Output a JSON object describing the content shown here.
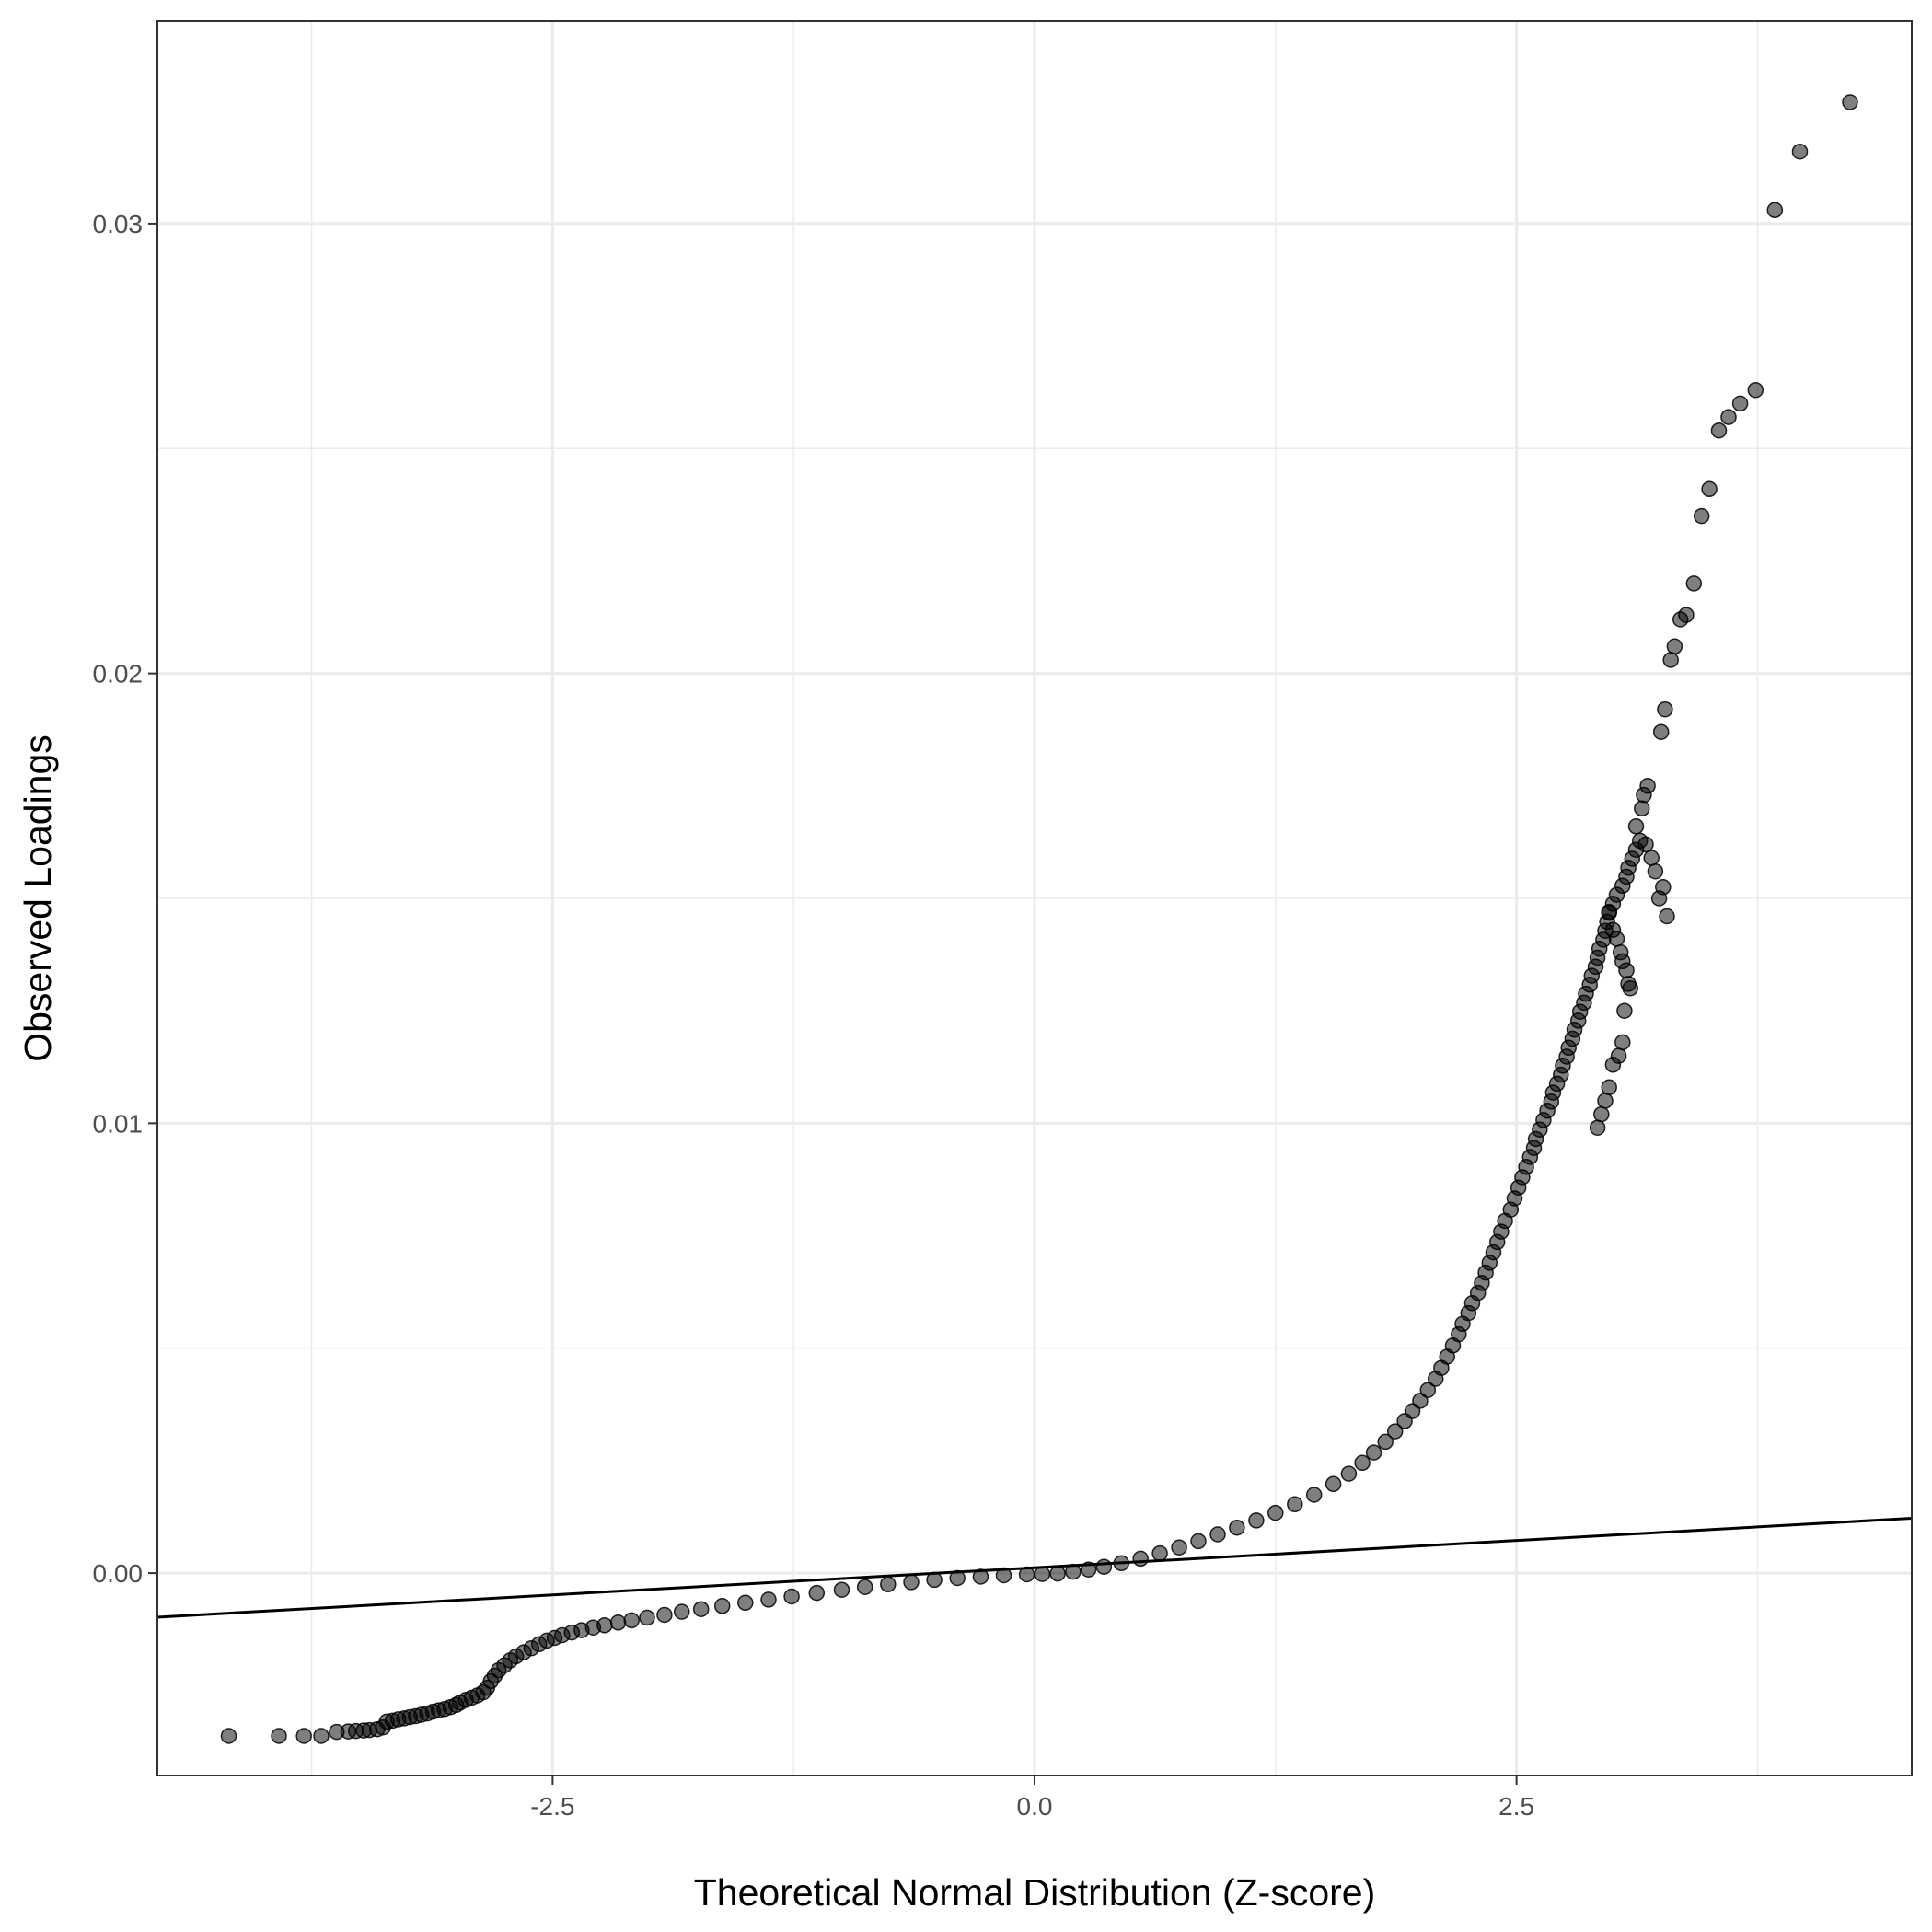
{
  "chart_data": {
    "type": "scatter",
    "title": "",
    "xlabel": "Theoretical Normal Distribution (Z-score)",
    "ylabel": "Observed Loadings",
    "xlim": [
      -4.55,
      4.55
    ],
    "ylim": [
      -0.0045,
      0.0345
    ],
    "x_ticks": [
      -2.5,
      0.0,
      2.5
    ],
    "x_tick_labels": [
      "-2.5",
      "0.0",
      "2.5"
    ],
    "y_ticks": [
      0.0,
      0.01,
      0.02,
      0.03
    ],
    "y_tick_labels": [
      "0.00",
      "0.01",
      "0.02",
      "0.03"
    ],
    "grid": true,
    "theme": "black-and-white",
    "point_color": "#000000",
    "point_alpha": 0.5,
    "reference_line": {
      "type": "qq-line",
      "x": [
        -4.55,
        4.55
      ],
      "y": [
        -0.00098,
        0.00122
      ],
      "color": "#000000"
    },
    "series": [
      {
        "points": [
          [
            -4.18,
            -0.00362
          ],
          [
            -3.92,
            -0.00362
          ],
          [
            -3.79,
            -0.00362
          ],
          [
            -3.7,
            -0.00362
          ],
          [
            -3.62,
            -0.00353
          ],
          [
            -3.56,
            -0.00352
          ],
          [
            -3.52,
            -0.00351
          ],
          [
            -3.48,
            -0.0035
          ],
          [
            -3.45,
            -0.00349
          ],
          [
            -3.41,
            -0.00347
          ],
          [
            -3.38,
            -0.00343
          ],
          [
            -3.36,
            -0.0033
          ],
          [
            -3.33,
            -0.00328
          ],
          [
            -3.3,
            -0.00325
          ],
          [
            -3.27,
            -0.00323
          ],
          [
            -3.24,
            -0.0032
          ],
          [
            -3.21,
            -0.00318
          ],
          [
            -3.18,
            -0.00315
          ],
          [
            -3.15,
            -0.00312
          ],
          [
            -3.12,
            -0.00308
          ],
          [
            -3.09,
            -0.00305
          ],
          [
            -3.06,
            -0.00302
          ],
          [
            -3.03,
            -0.00298
          ],
          [
            -3.0,
            -0.00293
          ],
          [
            -2.98,
            -0.00288
          ],
          [
            -2.95,
            -0.00282
          ],
          [
            -2.92,
            -0.00277
          ],
          [
            -2.89,
            -0.00272
          ],
          [
            -2.86,
            -0.00265
          ],
          [
            -2.84,
            -0.00255
          ],
          [
            -2.82,
            -0.0024
          ],
          [
            -2.8,
            -0.00228
          ],
          [
            -2.78,
            -0.00216
          ],
          [
            -2.75,
            -0.00205
          ],
          [
            -2.72,
            -0.00194
          ],
          [
            -2.69,
            -0.00185
          ],
          [
            -2.65,
            -0.00176
          ],
          [
            -2.61,
            -0.00167
          ],
          [
            -2.57,
            -0.00158
          ],
          [
            -2.53,
            -0.0015
          ],
          [
            -2.49,
            -0.00144
          ],
          [
            -2.45,
            -0.00138
          ],
          [
            -2.4,
            -0.00132
          ],
          [
            -2.35,
            -0.00127
          ],
          [
            -2.29,
            -0.00121
          ],
          [
            -2.23,
            -0.00116
          ],
          [
            -2.16,
            -0.0011
          ],
          [
            -2.09,
            -0.00105
          ],
          [
            -2.01,
            -0.00099
          ],
          [
            -1.92,
            -0.00093
          ],
          [
            -1.83,
            -0.00086
          ],
          [
            -1.73,
            -0.0008
          ],
          [
            -1.62,
            -0.00073
          ],
          [
            -1.5,
            -0.00066
          ],
          [
            -1.38,
            -0.00059
          ],
          [
            -1.26,
            -0.00052
          ],
          [
            -1.13,
            -0.00044
          ],
          [
            -1.0,
            -0.00037
          ],
          [
            -0.88,
            -0.00031
          ],
          [
            -0.76,
            -0.00025
          ],
          [
            -0.64,
            -0.0002
          ],
          [
            -0.52,
            -0.00015
          ],
          [
            -0.4,
            -0.00011
          ],
          [
            -0.28,
            -8e-05
          ],
          [
            -0.16,
            -5e-05
          ],
          [
            -0.04,
            -3e-05
          ],
          [
            0.04,
            -2e-05
          ],
          [
            0.12,
            -1e-05
          ],
          [
            0.2,
            3e-05
          ],
          [
            0.28,
            8e-05
          ],
          [
            0.36,
            0.00014
          ],
          [
            0.45,
            0.00022
          ],
          [
            0.55,
            0.00032
          ],
          [
            0.65,
            0.00044
          ],
          [
            0.75,
            0.00057
          ],
          [
            0.85,
            0.00071
          ],
          [
            0.95,
            0.00086
          ],
          [
            1.05,
            0.00101
          ],
          [
            1.15,
            0.00117
          ],
          [
            1.25,
            0.00134
          ],
          [
            1.35,
            0.00153
          ],
          [
            1.45,
            0.00174
          ],
          [
            1.55,
            0.00198
          ],
          [
            1.63,
            0.00221
          ],
          [
            1.7,
            0.00245
          ],
          [
            1.76,
            0.00268
          ],
          [
            1.82,
            0.00292
          ],
          [
            1.87,
            0.00315
          ],
          [
            1.92,
            0.00338
          ],
          [
            1.96,
            0.0036
          ],
          [
            2.0,
            0.00383
          ],
          [
            2.04,
            0.00407
          ],
          [
            2.08,
            0.00432
          ],
          [
            2.11,
            0.00456
          ],
          [
            2.14,
            0.00481
          ],
          [
            2.17,
            0.00506
          ],
          [
            2.2,
            0.00531
          ],
          [
            2.22,
            0.00554
          ],
          [
            2.25,
            0.00578
          ],
          [
            2.27,
            0.006
          ],
          [
            2.3,
            0.00623
          ],
          [
            2.32,
            0.00645
          ],
          [
            2.34,
            0.00668
          ],
          [
            2.36,
            0.0069
          ],
          [
            2.38,
            0.00713
          ],
          [
            2.4,
            0.00736
          ],
          [
            2.42,
            0.00759
          ],
          [
            2.44,
            0.00783
          ],
          [
            2.47,
            0.00808
          ],
          [
            2.49,
            0.00833
          ],
          [
            2.51,
            0.00857
          ],
          [
            2.53,
            0.0088
          ],
          [
            2.55,
            0.00903
          ],
          [
            2.57,
            0.00925
          ],
          [
            2.59,
            0.00945
          ],
          [
            2.6,
            0.00965
          ],
          [
            2.62,
            0.00986
          ],
          [
            2.64,
            0.01007
          ],
          [
            2.66,
            0.01028
          ],
          [
            2.68,
            0.01048
          ],
          [
            2.69,
            0.01068
          ],
          [
            2.71,
            0.01088
          ],
          [
            2.73,
            0.01108
          ],
          [
            2.74,
            0.01128
          ],
          [
            2.76,
            0.01148
          ],
          [
            2.77,
            0.01168
          ],
          [
            2.79,
            0.01188
          ],
          [
            2.8,
            0.01208
          ],
          [
            2.82,
            0.01228
          ],
          [
            2.83,
            0.01248
          ],
          [
            2.85,
            0.01268
          ],
          [
            2.86,
            0.01288
          ],
          [
            2.88,
            0.01308
          ],
          [
            2.89,
            0.01328
          ],
          [
            2.91,
            0.01348
          ],
          [
            2.92,
            0.01368
          ],
          [
            2.93,
            0.01388
          ],
          [
            2.95,
            0.01408
          ],
          [
            2.96,
            0.01428
          ],
          [
            2.97,
            0.01448
          ],
          [
            2.98,
            0.01468
          ],
          [
            3.0,
            0.01488
          ],
          [
            3.02,
            0.01508
          ],
          [
            3.05,
            0.01528
          ],
          [
            3.07,
            0.01548
          ],
          [
            3.08,
            0.01568
          ],
          [
            3.1,
            0.01588
          ],
          [
            3.12,
            0.01608
          ],
          [
            3.14,
            0.01628
          ],
          [
            3.17,
            0.0162
          ],
          [
            3.2,
            0.0159
          ],
          [
            3.22,
            0.0156
          ],
          [
            3.24,
            0.015
          ],
          [
            3.26,
            0.01525
          ],
          [
            3.28,
            0.0146
          ],
          [
            2.98,
            0.0147
          ],
          [
            3.0,
            0.0143
          ],
          [
            3.02,
            0.0141
          ],
          [
            3.04,
            0.0138
          ],
          [
            3.05,
            0.0136
          ],
          [
            3.07,
            0.0134
          ],
          [
            3.08,
            0.0131
          ],
          [
            3.09,
            0.013
          ],
          [
            3.06,
            0.0125
          ],
          [
            3.05,
            0.0118
          ],
          [
            3.03,
            0.0115
          ],
          [
            3.0,
            0.0113
          ],
          [
            2.98,
            0.0108
          ],
          [
            2.96,
            0.0105
          ],
          [
            2.94,
            0.0102
          ],
          [
            2.92,
            0.0099
          ],
          [
            3.12,
            0.0166
          ],
          [
            3.15,
            0.017
          ],
          [
            3.16,
            0.0173
          ],
          [
            3.18,
            0.0175
          ],
          [
            3.25,
            0.0187
          ],
          [
            3.27,
            0.0192
          ],
          [
            3.3,
            0.0203
          ],
          [
            3.32,
            0.0206
          ],
          [
            3.35,
            0.0212
          ],
          [
            3.38,
            0.0213
          ],
          [
            3.42,
            0.022
          ],
          [
            3.46,
            0.0235
          ],
          [
            3.5,
            0.0241
          ],
          [
            3.55,
            0.0254
          ],
          [
            3.6,
            0.0257
          ],
          [
            3.66,
            0.026
          ],
          [
            3.74,
            0.0263
          ],
          [
            3.84,
            0.0303
          ],
          [
            3.97,
            0.0316
          ],
          [
            4.23,
            0.0327
          ]
        ]
      }
    ]
  }
}
